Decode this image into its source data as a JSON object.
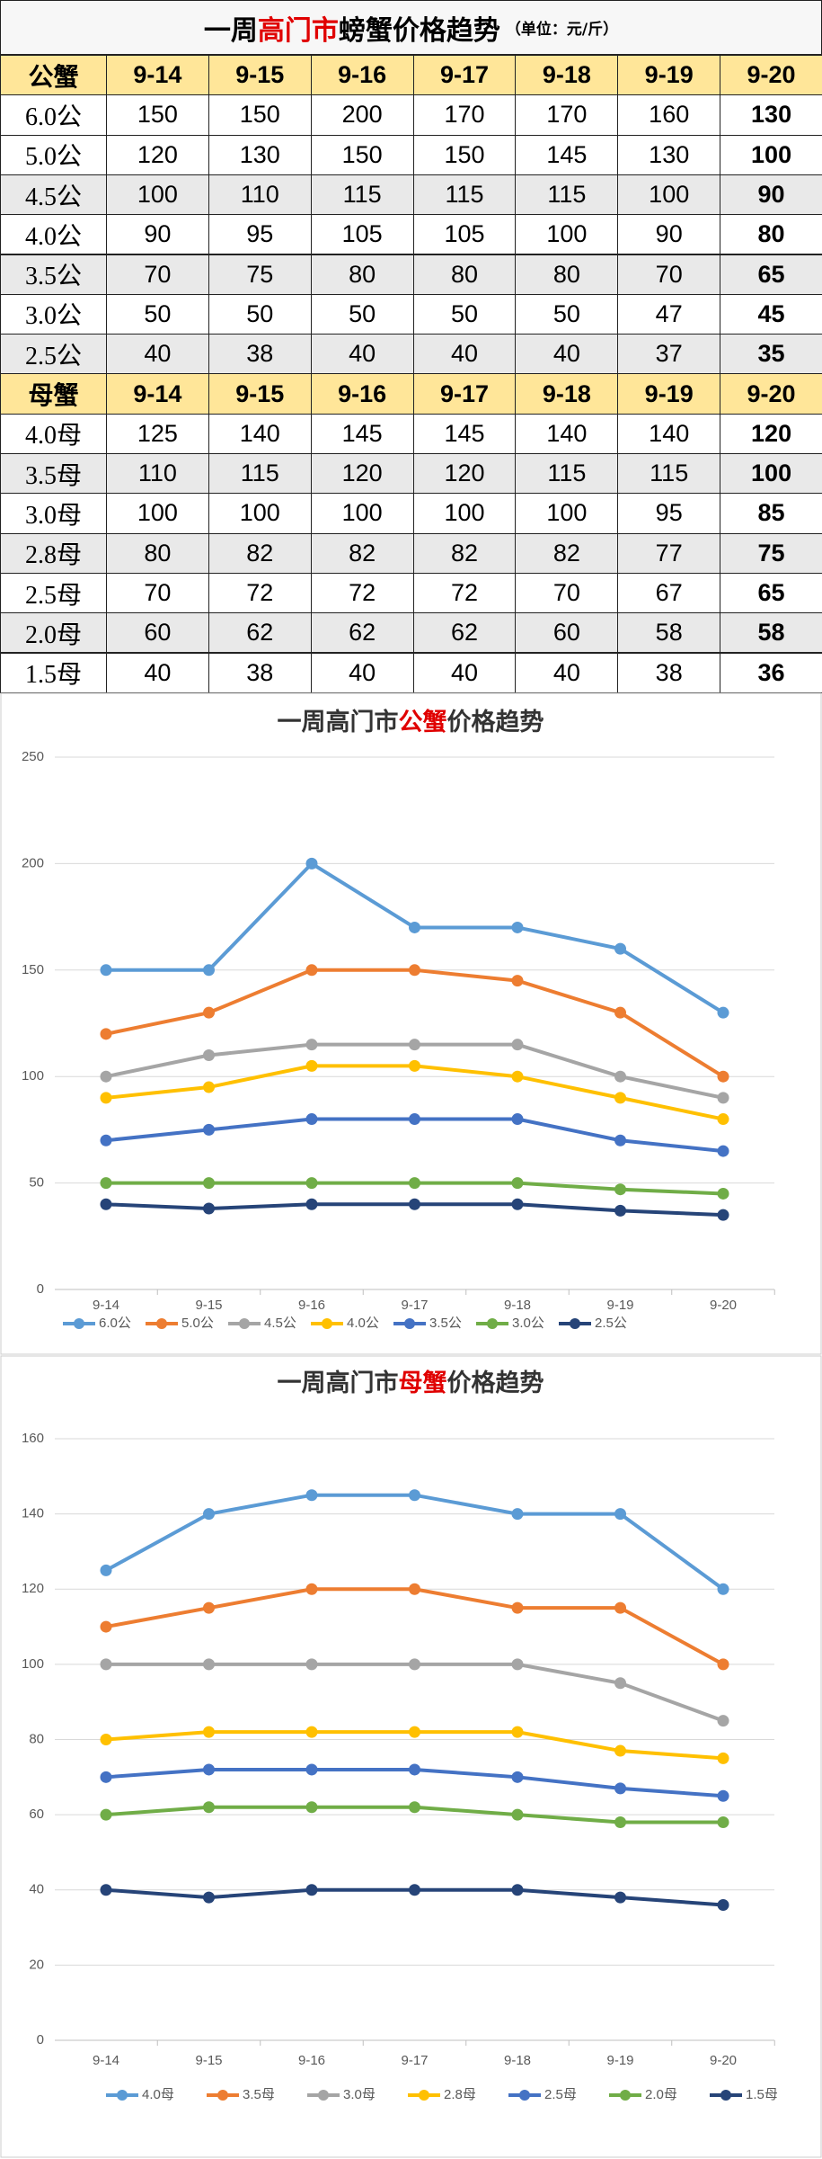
{
  "table": {
    "title": [
      "一周",
      "高门市",
      "螃蟹价格趋势"
    ],
    "unit": "（单位：元/斤）",
    "sections": [
      {
        "header": [
          "公蟹",
          "9-14",
          "9-15",
          "9-16",
          "9-17",
          "9-18",
          "9-19",
          "9-20"
        ],
        "rows": [
          [
            "6.0公",
            150,
            150,
            200,
            170,
            170,
            160,
            130
          ],
          [
            "5.0公",
            120,
            130,
            150,
            150,
            145,
            130,
            100
          ],
          [
            "4.5公",
            100,
            110,
            115,
            115,
            115,
            100,
            90
          ],
          [
            "4.0公",
            90,
            95,
            105,
            105,
            100,
            90,
            80
          ],
          [
            "3.5公",
            70,
            75,
            80,
            80,
            80,
            70,
            65
          ],
          [
            "3.0公",
            50,
            50,
            50,
            50,
            50,
            47,
            45
          ],
          [
            "2.5公",
            40,
            38,
            40,
            40,
            40,
            37,
            35
          ]
        ]
      },
      {
        "header": [
          "母蟹",
          "9-14",
          "9-15",
          "9-16",
          "9-17",
          "9-18",
          "9-19",
          "9-20"
        ],
        "rows": [
          [
            "4.0母",
            125,
            140,
            145,
            145,
            140,
            140,
            120
          ],
          [
            "3.5母",
            110,
            115,
            120,
            120,
            115,
            115,
            100
          ],
          [
            "3.0母",
            100,
            100,
            100,
            100,
            100,
            95,
            85
          ],
          [
            "2.8母",
            80,
            82,
            82,
            82,
            82,
            77,
            75
          ],
          [
            "2.5母",
            70,
            72,
            72,
            72,
            70,
            67,
            65
          ],
          [
            "2.0母",
            60,
            62,
            62,
            62,
            60,
            58,
            58
          ],
          [
            "1.5母",
            40,
            38,
            40,
            40,
            40,
            38,
            36
          ]
        ]
      }
    ]
  },
  "chart_data": [
    {
      "type": "line",
      "title": [
        "一周高门市",
        "公蟹",
        "价格趋势"
      ],
      "categories": [
        "9-14",
        "9-15",
        "9-16",
        "9-17",
        "9-18",
        "9-19",
        "9-20"
      ],
      "ylim": [
        0,
        250
      ],
      "yticks": [
        0,
        50,
        100,
        150,
        200,
        250
      ],
      "grid": true,
      "series": [
        {
          "name": "6.0公",
          "color": "#5b9bd5",
          "values": [
            150,
            150,
            200,
            170,
            170,
            160,
            130
          ]
        },
        {
          "name": "5.0公",
          "color": "#ed7d31",
          "values": [
            120,
            130,
            150,
            150,
            145,
            130,
            100
          ]
        },
        {
          "name": "4.5公",
          "color": "#a5a5a5",
          "values": [
            100,
            110,
            115,
            115,
            115,
            100,
            90
          ]
        },
        {
          "name": "4.0公",
          "color": "#ffc000",
          "values": [
            90,
            95,
            105,
            105,
            100,
            90,
            80
          ]
        },
        {
          "name": "3.5公",
          "color": "#4472c4",
          "values": [
            70,
            75,
            80,
            80,
            80,
            70,
            65
          ]
        },
        {
          "name": "3.0公",
          "color": "#70ad47",
          "values": [
            50,
            50,
            50,
            50,
            50,
            47,
            45
          ]
        },
        {
          "name": "2.5公",
          "color": "#264478",
          "values": [
            40,
            38,
            40,
            40,
            40,
            37,
            35
          ]
        }
      ]
    },
    {
      "type": "line",
      "title": [
        "一周高门市",
        "母蟹",
        "价格趋势"
      ],
      "categories": [
        "9-14",
        "9-15",
        "9-16",
        "9-17",
        "9-18",
        "9-19",
        "9-20"
      ],
      "ylim": [
        0,
        160
      ],
      "yticks": [
        0,
        20,
        40,
        60,
        80,
        100,
        120,
        140,
        160
      ],
      "grid": true,
      "series": [
        {
          "name": "4.0母",
          "color": "#5b9bd5",
          "values": [
            125,
            140,
            145,
            145,
            140,
            140,
            120
          ]
        },
        {
          "name": "3.5母",
          "color": "#ed7d31",
          "values": [
            110,
            115,
            120,
            120,
            115,
            115,
            100
          ]
        },
        {
          "name": "3.0母",
          "color": "#a5a5a5",
          "values": [
            100,
            100,
            100,
            100,
            100,
            95,
            85
          ]
        },
        {
          "name": "2.8母",
          "color": "#ffc000",
          "values": [
            80,
            82,
            82,
            82,
            82,
            77,
            75
          ]
        },
        {
          "name": "2.5母",
          "color": "#4472c4",
          "values": [
            70,
            72,
            72,
            72,
            70,
            67,
            65
          ]
        },
        {
          "name": "2.0母",
          "color": "#70ad47",
          "values": [
            60,
            62,
            62,
            62,
            60,
            58,
            58
          ]
        },
        {
          "name": "1.5母",
          "color": "#264478",
          "values": [
            40,
            38,
            40,
            40,
            40,
            38,
            36
          ]
        }
      ]
    }
  ]
}
